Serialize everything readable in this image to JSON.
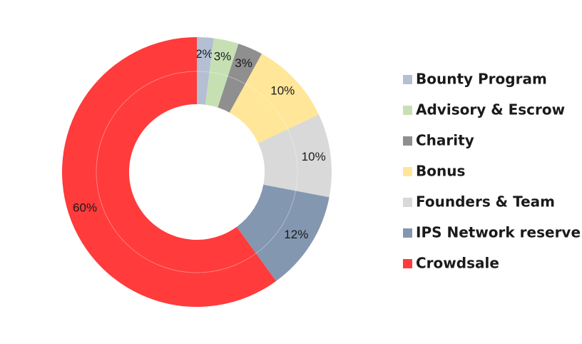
{
  "chart_data": {
    "type": "donut",
    "categories": [
      "Bounty Program",
      "Advisory & Escrow",
      "Charity",
      "Bonus",
      "Founders & Team",
      "IPS Network reserve",
      "Crowdsale"
    ],
    "values": [
      2,
      3,
      3,
      10,
      10,
      12,
      60
    ],
    "value_labels": [
      "2%",
      "3%",
      "3%",
      "10%",
      "10%",
      "12%",
      "60%"
    ],
    "colors": [
      "#b4bfd3",
      "#c6e0b4",
      "#8f8f8f",
      "#ffe699",
      "#d9d9d9",
      "#8497b0",
      "#ff3b3b"
    ],
    "legend": "right"
  }
}
